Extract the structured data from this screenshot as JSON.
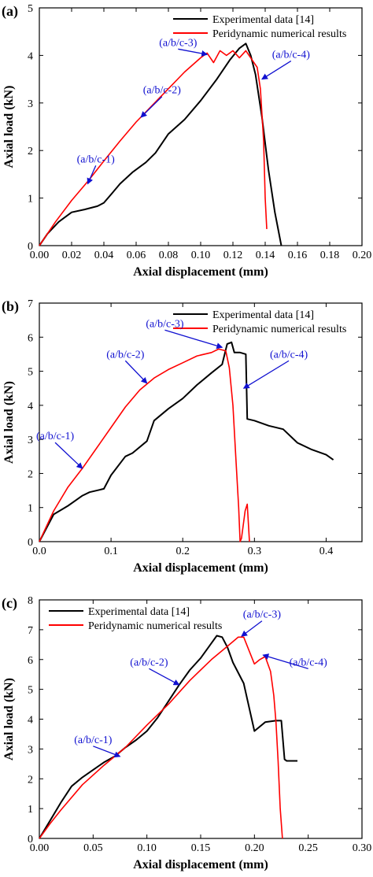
{
  "chart_data": [
    {
      "panel": "(a)",
      "type": "line",
      "xlabel": "Axial displacement (mm)",
      "ylabel": "Axial load (kN)",
      "xlim": [
        0,
        0.2
      ],
      "ylim": [
        0,
        5
      ],
      "xticks": [
        "0.00",
        "0.02",
        "0.04",
        "0.06",
        "0.08",
        "0.10",
        "0.12",
        "0.14",
        "0.16",
        "0.18",
        "0.20"
      ],
      "yticks": [
        "0",
        "1",
        "2",
        "3",
        "4",
        "5"
      ],
      "legend_position": "top-right",
      "series": [
        {
          "name": "Experimental data [14]",
          "color": "#000000",
          "x": [
            0,
            0.005,
            0.012,
            0.02,
            0.028,
            0.036,
            0.04,
            0.045,
            0.05,
            0.058,
            0.066,
            0.072,
            0.08,
            0.09,
            0.1,
            0.11,
            0.118,
            0.124,
            0.128,
            0.131,
            0.134,
            0.138,
            0.142,
            0.146,
            0.15
          ],
          "y": [
            0,
            0.25,
            0.5,
            0.7,
            0.76,
            0.83,
            0.9,
            1.1,
            1.3,
            1.55,
            1.75,
            1.95,
            2.35,
            2.65,
            3.05,
            3.5,
            3.9,
            4.15,
            4.25,
            4.0,
            3.6,
            2.7,
            1.6,
            0.7,
            0.0
          ]
        },
        {
          "name": "Peridynamic numerical results",
          "color": "#ff0000",
          "x": [
            0,
            0.01,
            0.02,
            0.03,
            0.04,
            0.05,
            0.06,
            0.07,
            0.08,
            0.09,
            0.1,
            0.104,
            0.108,
            0.112,
            0.116,
            0.12,
            0.124,
            0.128,
            0.132,
            0.135,
            0.137,
            0.139,
            0.14,
            0.141
          ],
          "y": [
            0,
            0.5,
            0.95,
            1.35,
            1.78,
            2.2,
            2.6,
            2.95,
            3.3,
            3.65,
            3.95,
            4.05,
            3.85,
            4.1,
            4.0,
            4.1,
            3.95,
            4.1,
            3.9,
            3.75,
            3.3,
            2.2,
            1.0,
            0.35
          ]
        }
      ],
      "annotations": [
        {
          "text": "(a/b/c-1)",
          "x": 0.035,
          "y": 1.75,
          "target_x": 0.03,
          "target_y": 1.3
        },
        {
          "text": "(a/b/c-2)",
          "x": 0.076,
          "y": 3.2,
          "target_x": 0.063,
          "target_y": 2.7
        },
        {
          "text": "(a/b/c-3)",
          "x": 0.086,
          "y": 4.2,
          "target_x": 0.104,
          "target_y": 4.02
        },
        {
          "text": "(a/b/c-4)",
          "x": 0.156,
          "y": 3.95,
          "target_x": 0.138,
          "target_y": 3.5
        }
      ]
    },
    {
      "panel": "(b)",
      "type": "line",
      "xlabel": "Axial displacement (mm)",
      "ylabel": "Axial load (kN)",
      "xlim": [
        0,
        0.45
      ],
      "ylim": [
        0,
        7
      ],
      "xticks": [
        "0.0",
        "0.1",
        "0.2",
        "0.3",
        "0.4"
      ],
      "xtick_values": [
        0,
        0.1,
        0.2,
        0.3,
        0.4
      ],
      "yticks": [
        "0",
        "1",
        "2",
        "3",
        "4",
        "5",
        "6",
        "7"
      ],
      "legend_position": "top-right",
      "series": [
        {
          "name": "Experimental data [14]",
          "color": "#000000",
          "x": [
            0,
            0.02,
            0.04,
            0.06,
            0.07,
            0.09,
            0.1,
            0.12,
            0.13,
            0.15,
            0.16,
            0.18,
            0.2,
            0.22,
            0.24,
            0.255,
            0.262,
            0.268,
            0.272,
            0.28,
            0.288,
            0.29,
            0.3,
            0.32,
            0.34,
            0.36,
            0.38,
            0.4,
            0.41
          ],
          "y": [
            0,
            0.8,
            1.05,
            1.35,
            1.45,
            1.55,
            1.95,
            2.5,
            2.6,
            2.95,
            3.55,
            3.9,
            4.2,
            4.6,
            4.95,
            5.2,
            5.8,
            5.85,
            5.55,
            5.55,
            5.5,
            3.6,
            3.55,
            3.4,
            3.3,
            2.9,
            2.7,
            2.55,
            2.4
          ]
        },
        {
          "name": "Peridynamic numerical results",
          "color": "#ff0000",
          "x": [
            0,
            0.02,
            0.04,
            0.06,
            0.08,
            0.1,
            0.12,
            0.14,
            0.16,
            0.18,
            0.2,
            0.22,
            0.24,
            0.25,
            0.26,
            0.265,
            0.27,
            0.274,
            0.278,
            0.28,
            0.282,
            0.287,
            0.29,
            0.293
          ],
          "y": [
            0,
            0.9,
            1.6,
            2.15,
            2.75,
            3.35,
            3.95,
            4.45,
            4.8,
            5.05,
            5.25,
            5.45,
            5.55,
            5.65,
            5.6,
            5.1,
            4.0,
            2.5,
            1.0,
            0.0,
            0.1,
            0.9,
            1.1,
            0.0
          ]
        }
      ],
      "annotations": [
        {
          "text": "(a/b/c-1)",
          "x": 0.022,
          "y": 3.0,
          "target_x": 0.06,
          "target_y": 2.15
        },
        {
          "text": "(a/b/c-2)",
          "x": 0.12,
          "y": 5.4,
          "target_x": 0.15,
          "target_y": 4.65
        },
        {
          "text": "(a/b/c-3)",
          "x": 0.175,
          "y": 6.3,
          "target_x": 0.255,
          "target_y": 5.7
        },
        {
          "text": "(a/b/c-4)",
          "x": 0.348,
          "y": 5.4,
          "target_x": 0.285,
          "target_y": 4.5
        }
      ]
    },
    {
      "panel": "(c)",
      "type": "line",
      "xlabel": "Axial displacement (mm)",
      "ylabel": "Axial load (kN)",
      "xlim": [
        0,
        0.3
      ],
      "ylim": [
        0,
        8
      ],
      "xticks": [
        "0.00",
        "0.05",
        "0.10",
        "0.15",
        "0.20",
        "0.25",
        "0.30"
      ],
      "xtick_values": [
        0,
        0.05,
        0.1,
        0.15,
        0.2,
        0.25,
        0.3
      ],
      "yticks": [
        "0",
        "1",
        "2",
        "3",
        "4",
        "5",
        "6",
        "7",
        "8"
      ],
      "legend_position": "top-left",
      "series": [
        {
          "name": "Experimental data [14]",
          "color": "#000000",
          "x": [
            0,
            0.01,
            0.02,
            0.03,
            0.04,
            0.05,
            0.06,
            0.07,
            0.08,
            0.09,
            0.1,
            0.11,
            0.12,
            0.13,
            0.14,
            0.15,
            0.16,
            0.165,
            0.17,
            0.175,
            0.18,
            0.19,
            0.2,
            0.21,
            0.22,
            0.225,
            0.228,
            0.23,
            0.24
          ],
          "y": [
            0,
            0.6,
            1.2,
            1.75,
            2.05,
            2.3,
            2.55,
            2.75,
            3.05,
            3.3,
            3.6,
            4.05,
            4.6,
            5.15,
            5.65,
            6.05,
            6.55,
            6.8,
            6.75,
            6.4,
            5.9,
            5.2,
            3.6,
            3.9,
            3.95,
            3.95,
            2.65,
            2.6,
            2.6
          ]
        },
        {
          "name": "Peridynamic numerical results",
          "color": "#ff0000",
          "x": [
            0,
            0.01,
            0.02,
            0.04,
            0.06,
            0.08,
            0.1,
            0.12,
            0.14,
            0.16,
            0.175,
            0.185,
            0.19,
            0.195,
            0.2,
            0.205,
            0.21,
            0.215,
            0.218,
            0.22,
            0.222,
            0.224,
            0.226
          ],
          "y": [
            0,
            0.5,
            0.95,
            1.8,
            2.45,
            3.05,
            3.8,
            4.5,
            5.3,
            6.0,
            6.45,
            6.75,
            6.75,
            6.3,
            5.85,
            6.0,
            6.1,
            5.6,
            4.8,
            3.9,
            2.6,
            1.0,
            0.0
          ]
        }
      ],
      "annotations": [
        {
          "text": "(a/b/c-1)",
          "x": 0.05,
          "y": 3.2,
          "target_x": 0.075,
          "target_y": 2.75
        },
        {
          "text": "(a/b/c-2)",
          "x": 0.102,
          "y": 5.8,
          "target_x": 0.13,
          "target_y": 5.15
        },
        {
          "text": "(a/b/c-3)",
          "x": 0.207,
          "y": 7.4,
          "target_x": 0.188,
          "target_y": 6.78
        },
        {
          "text": "(a/b/c-4)",
          "x": 0.25,
          "y": 5.8,
          "target_x": 0.208,
          "target_y": 6.15
        }
      ]
    }
  ]
}
